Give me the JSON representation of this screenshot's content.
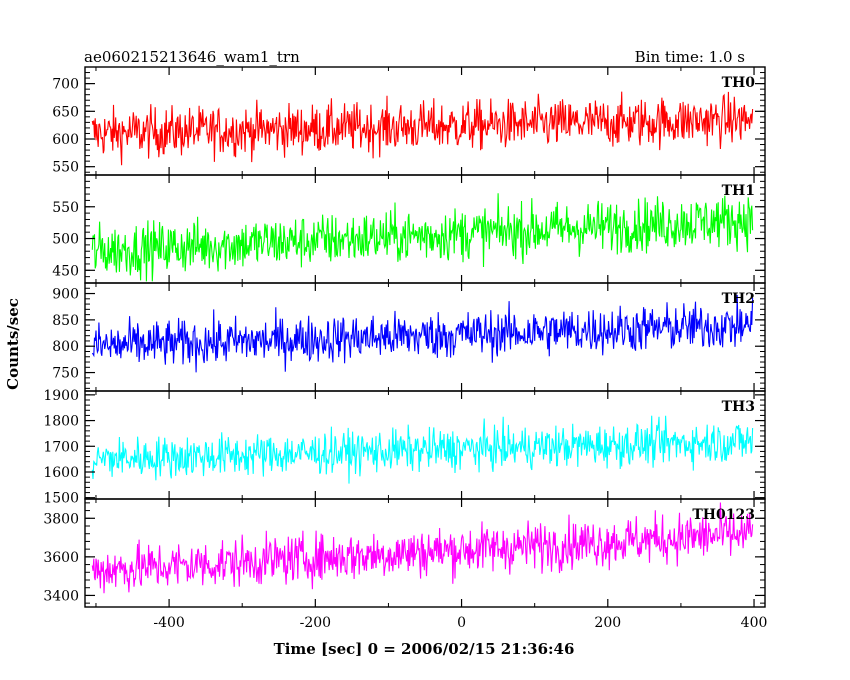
{
  "header": {
    "title": "ae060215213646_wam1_trn",
    "bin_time": "Bin time: 1.0 s"
  },
  "chart_data": {
    "type": "line",
    "title": "ae060215213646_wam1_trn",
    "xlabel": "Time [sec] 0 = 2006/02/15 21:36:46",
    "ylabel": "Counts/sec",
    "xlim": [
      -515,
      415
    ],
    "x_ticks": [
      -400,
      -200,
      0,
      200,
      400
    ],
    "x_range": [
      -505,
      398
    ],
    "grid": false,
    "panels": [
      {
        "name": "TH0",
        "color": "#ff0000",
        "ylim": [
          535,
          730
        ],
        "y_ticks": [
          550,
          600,
          650,
          700
        ],
        "start_mean": 610,
        "end_mean": 635,
        "spread": 30
      },
      {
        "name": "TH1",
        "color": "#00ff00",
        "ylim": [
          430,
          600
        ],
        "y_ticks": [
          450,
          500,
          550
        ],
        "start_mean": 480,
        "end_mean": 530,
        "spread": 28
      },
      {
        "name": "TH2",
        "color": "#0000ff",
        "ylim": [
          715,
          920
        ],
        "y_ticks": [
          750,
          800,
          850,
          900
        ],
        "start_mean": 800,
        "end_mean": 840,
        "spread": 30
      },
      {
        "name": "TH3",
        "color": "#00ffff",
        "ylim": [
          1495,
          1915
        ],
        "y_ticks": [
          1500,
          1600,
          1700,
          1800,
          1900
        ],
        "start_mean": 1650,
        "end_mean": 1720,
        "spread": 55
      },
      {
        "name": "TH0123",
        "color": "#ff00ff",
        "ylim": [
          3340,
          3900
        ],
        "y_ticks": [
          3400,
          3600,
          3800
        ],
        "start_mean": 3530,
        "end_mean": 3720,
        "spread": 85
      }
    ]
  }
}
